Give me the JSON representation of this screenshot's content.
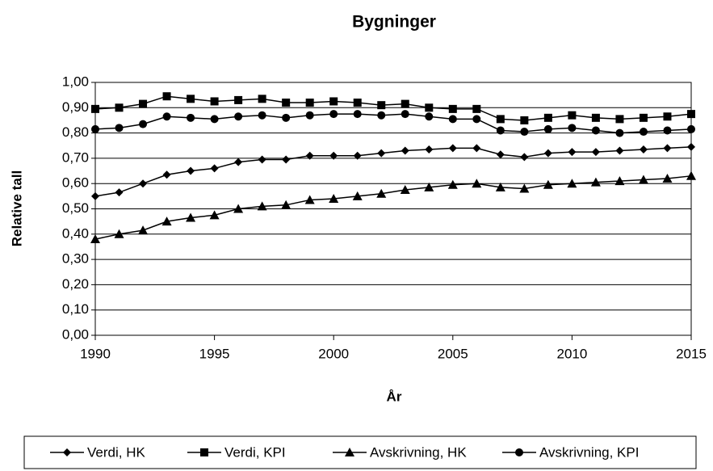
{
  "chart_data": {
    "type": "line",
    "title": "Bygninger",
    "x_label": "År",
    "y_label": "Relative tall",
    "x": [
      1990,
      1991,
      1992,
      1993,
      1994,
      1995,
      1996,
      1997,
      1998,
      1999,
      2000,
      2001,
      2002,
      2003,
      2004,
      2005,
      2006,
      2007,
      2008,
      2009,
      2010,
      2011,
      2012,
      2013,
      2014,
      2015
    ],
    "series": [
      {
        "name": "Verdi, HK",
        "color": "#000000",
        "marker": "diamond",
        "values": [
          0.55,
          0.565,
          0.6,
          0.635,
          0.65,
          0.66,
          0.685,
          0.695,
          0.695,
          0.71,
          0.71,
          0.71,
          0.72,
          0.73,
          0.735,
          0.74,
          0.74,
          0.715,
          0.705,
          0.72,
          0.725,
          0.725,
          0.73,
          0.735,
          0.74,
          0.745
        ]
      },
      {
        "name": "Verdi, KPI",
        "color": "#000000",
        "marker": "square",
        "values": [
          0.895,
          0.9,
          0.915,
          0.945,
          0.935,
          0.925,
          0.93,
          0.935,
          0.92,
          0.92,
          0.925,
          0.92,
          0.91,
          0.915,
          0.9,
          0.895,
          0.895,
          0.855,
          0.85,
          0.86,
          0.87,
          0.86,
          0.855,
          0.86,
          0.865,
          0.875
        ]
      },
      {
        "name": "Avskrivning, HK",
        "color": "#000000",
        "marker": "triangle",
        "values": [
          0.38,
          0.4,
          0.415,
          0.45,
          0.465,
          0.475,
          0.5,
          0.51,
          0.515,
          0.535,
          0.54,
          0.55,
          0.56,
          0.575,
          0.585,
          0.595,
          0.6,
          0.585,
          0.58,
          0.595,
          0.6,
          0.605,
          0.61,
          0.615,
          0.62,
          0.63
        ]
      },
      {
        "name": "Avskrivning, KPI",
        "color": "#000000",
        "marker": "circle",
        "values": [
          0.815,
          0.82,
          0.835,
          0.865,
          0.86,
          0.855,
          0.865,
          0.87,
          0.86,
          0.87,
          0.875,
          0.875,
          0.87,
          0.875,
          0.865,
          0.855,
          0.855,
          0.81,
          0.805,
          0.815,
          0.82,
          0.81,
          0.8,
          0.805,
          0.81,
          0.815
        ]
      }
    ],
    "xlim": [
      1990,
      2015
    ],
    "xticks": [
      1990,
      1995,
      2000,
      2005,
      2010,
      2015
    ],
    "ylim": [
      0,
      1
    ],
    "yticks": [
      {
        "value": 0,
        "label": "0,00"
      },
      {
        "value": 0.1,
        "label": "0,10"
      },
      {
        "value": 0.2,
        "label": "0,20"
      },
      {
        "value": 0.3,
        "label": "0,30"
      },
      {
        "value": 0.4,
        "label": "0,40"
      },
      {
        "value": 0.5,
        "label": "0,50"
      },
      {
        "value": 0.6,
        "label": "0,60"
      },
      {
        "value": 0.7,
        "label": "0,70"
      },
      {
        "value": 0.8,
        "label": "0,80"
      },
      {
        "value": 0.9,
        "label": "0,90"
      },
      {
        "value": 1,
        "label": "1,00"
      }
    ],
    "grid": true,
    "legend": "bottom"
  }
}
